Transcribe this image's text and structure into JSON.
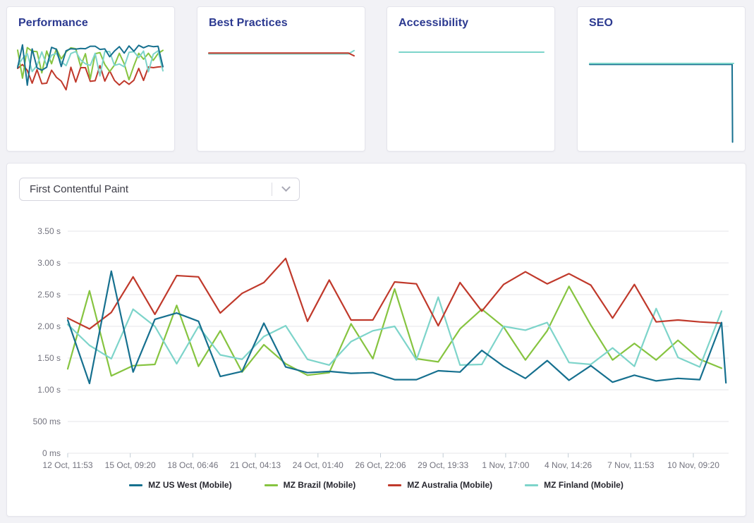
{
  "colors": {
    "page_bg": "#f2f2f6",
    "card_title": "#2b3990",
    "grid": "#e6e6ea",
    "tick": "#c2cdd6",
    "axis_text": "#73737e",
    "legend_text": "#26262e"
  },
  "cards": [
    {
      "title": "Performance",
      "sparkline": {
        "type": "line-multi",
        "source": "fcp_series_inverted_scores"
      }
    },
    {
      "title": "Best Practices",
      "sparkline": {
        "type": "line-multi",
        "series": [
          {
            "series_ref": "MZ Finland (Mobile)",
            "color": "#7dd4ca",
            "points": [
              [
                0,
                0.55
              ],
              [
                0.96,
                0.55
              ],
              [
                1,
                0.08
              ]
            ]
          },
          {
            "series_ref": "MZ Australia (Mobile)",
            "color": "#c0392b",
            "points": [
              [
                0,
                0.42
              ],
              [
                0.96,
                0.42
              ],
              [
                1,
                0.82
              ]
            ]
          }
        ]
      }
    },
    {
      "title": "Accessibility",
      "sparkline": {
        "type": "line-flat",
        "series": [
          {
            "series_ref": "MZ Finland (Mobile)",
            "color": "#7dd4ca",
            "points": [
              [
                0,
                0.5
              ],
              [
                1,
                0.5
              ]
            ]
          }
        ]
      }
    },
    {
      "title": "SEO",
      "sparkline": {
        "type": "line-flat-with-drop",
        "series": [
          {
            "series_ref": "MZ US West (Mobile)",
            "color": "#16708f",
            "points": [
              [
                0,
                0.012
              ],
              [
                0.99,
                0.012
              ],
              [
                0.993,
                0.97
              ]
            ]
          },
          {
            "series_ref": "MZ Finland (Mobile)",
            "color": "#7dd4ca",
            "points": [
              [
                0,
                0
              ],
              [
                1,
                0
              ]
            ]
          }
        ]
      }
    }
  ],
  "metric_selector": {
    "value": "First Contentful Paint",
    "icon": "chevron-down"
  },
  "chart_data": {
    "type": "line",
    "metric": "First Contentful Paint",
    "unit": "seconds",
    "ylim": [
      0,
      3.5
    ],
    "grid": "horizontal",
    "legend_position": "bottom-center",
    "y_tick_labels": [
      "3.50 s",
      "3.00 s",
      "2.50 s",
      "2.00 s",
      "1.50 s",
      "1.00 s",
      "500 ms",
      "0 ms"
    ],
    "y_tick_values": [
      3.5,
      3.0,
      2.5,
      2.0,
      1.5,
      1.0,
      0.5,
      0
    ],
    "x_tick_labels": [
      "12 Oct, 11:53",
      "15 Oct, 09:20",
      "18 Oct, 06:46",
      "21 Oct, 04:13",
      "24 Oct, 01:40",
      "26 Oct, 22:06",
      "29 Oct, 19:33",
      "1 Nov, 17:00",
      "4 Nov, 14:26",
      "7 Nov, 11:53",
      "10 Nov, 09:20"
    ],
    "series": [
      {
        "name": "MZ US West (Mobile)",
        "color": "#16708f",
        "values": [
          2.1,
          1.1,
          2.87,
          1.28,
          2.11,
          2.21,
          2.08,
          1.21,
          1.29,
          2.05,
          1.36,
          1.27,
          1.29,
          1.26,
          1.27,
          1.16,
          1.16,
          1.3,
          1.28,
          1.62,
          1.37,
          1.18,
          1.46,
          1.15,
          1.38,
          1.12,
          1.23,
          1.14,
          1.18,
          1.16,
          2.06
        ],
        "final_drop": 1.11
      },
      {
        "name": "MZ Brazil (Mobile)",
        "color": "#86c440",
        "values": [
          1.33,
          2.56,
          1.22,
          1.38,
          1.4,
          2.33,
          1.37,
          1.93,
          1.28,
          1.71,
          1.41,
          1.23,
          1.27,
          2.04,
          1.49,
          2.59,
          1.49,
          1.44,
          1.96,
          2.27,
          1.99,
          1.47,
          1.93,
          2.63,
          2.02,
          1.47,
          1.73,
          1.47,
          1.78,
          1.48,
          1.34
        ]
      },
      {
        "name": "MZ Australia (Mobile)",
        "color": "#c0392b",
        "values": [
          2.13,
          1.96,
          2.22,
          2.78,
          2.19,
          2.8,
          2.78,
          2.21,
          2.52,
          2.69,
          3.07,
          2.08,
          2.73,
          2.1,
          2.1,
          2.7,
          2.67,
          2.01,
          2.69,
          2.24,
          2.66,
          2.86,
          2.67,
          2.83,
          2.65,
          2.13,
          2.66,
          2.07,
          2.1,
          2.07,
          2.05
        ]
      },
      {
        "name": "MZ Finland (Mobile)",
        "color": "#7dd4ca",
        "values": [
          2.03,
          1.7,
          1.49,
          2.27,
          2.0,
          1.41,
          2.0,
          1.55,
          1.48,
          1.84,
          2.01,
          1.48,
          1.39,
          1.76,
          1.93,
          2.0,
          1.47,
          2.46,
          1.39,
          1.4,
          2.0,
          1.94,
          2.06,
          1.43,
          1.4,
          1.66,
          1.37,
          2.28,
          1.51,
          1.36,
          2.24
        ]
      }
    ]
  }
}
